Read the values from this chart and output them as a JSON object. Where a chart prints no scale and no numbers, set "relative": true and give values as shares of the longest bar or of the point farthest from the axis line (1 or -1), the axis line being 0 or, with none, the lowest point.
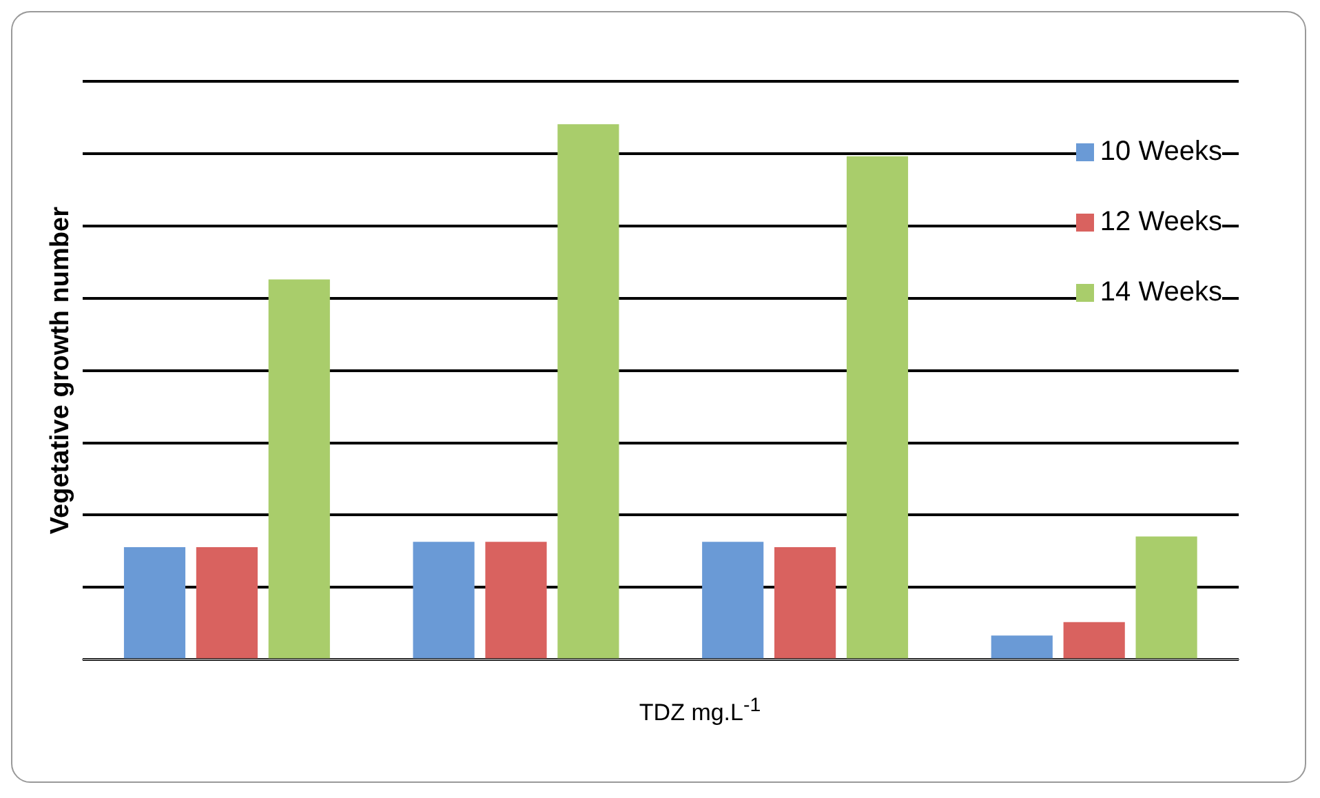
{
  "chart_data": {
    "type": "bar",
    "relative": true,
    "xlabel": "TDZ mg.L$^{-1}$",
    "ylabel": "Vegetative growth number",
    "categories": [
      null,
      null,
      null,
      null
    ],
    "series": [
      {
        "name": "10 Weeks",
        "color": "#6a9ad6",
        "values": [
          0.21,
          0.22,
          0.22,
          0.045
        ]
      },
      {
        "name": "12 Weeks",
        "color": "#d9625f",
        "values": [
          0.21,
          0.22,
          0.21,
          0.07
        ]
      },
      {
        "name": "14 Weeks",
        "color": "#a9cd6b",
        "values": [
          0.71,
          1,
          0.94,
          0.23
        ]
      }
    ],
    "grid": "y",
    "legend": "top right"
  }
}
